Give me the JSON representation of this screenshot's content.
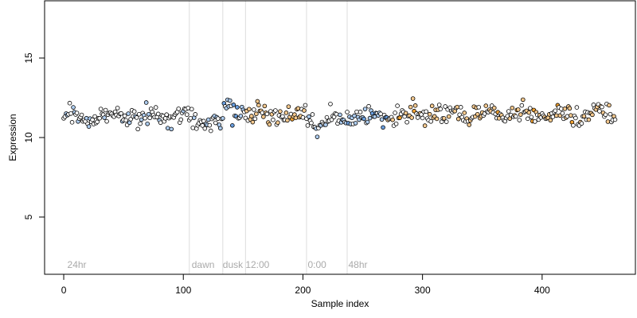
{
  "chart_data": {
    "type": "scatter",
    "title": "",
    "xlabel": "Sample index",
    "ylabel": "Expression",
    "xlim": [
      -16,
      478
    ],
    "ylim": [
      1.4,
      18.6
    ],
    "x_ticks": [
      0,
      100,
      200,
      300,
      400
    ],
    "y_ticks": [
      5,
      10,
      15
    ],
    "grid": false,
    "legend": "none",
    "n_points": 462,
    "colors": {
      "neutral": "#ffffff",
      "light_blue": "#aecdf0",
      "blue": "#6a9fe0",
      "light_orange": "#f5c98e",
      "orange": "#f0a030",
      "outline": "#000000",
      "divider": "#dddddd",
      "annotation": "#aaaaaa"
    },
    "dividers": [
      105,
      133,
      152,
      203,
      237
    ],
    "annotations": [
      {
        "x": 3,
        "label": "24hr"
      },
      {
        "x": 107,
        "label": "dawn"
      },
      {
        "x": 133,
        "label": "dusk"
      },
      {
        "x": 152,
        "label": "12:00"
      },
      {
        "x": 204,
        "label": "0:00"
      },
      {
        "x": 238,
        "label": "48hr"
      }
    ],
    "annotation_y": 2.0,
    "segments": [
      {
        "from": 0,
        "to": 104,
        "mean": 11.3,
        "color": "neutral"
      },
      {
        "from": 105,
        "to": 132,
        "mean": 11.05,
        "color": "neutral"
      },
      {
        "from": 133,
        "to": 151,
        "mean": 11.6,
        "color": "light_blue"
      },
      {
        "from": 152,
        "to": 202,
        "mean": 11.4,
        "color": "light_orange"
      },
      {
        "from": 203,
        "to": 236,
        "mean": 11.1,
        "color": "neutral"
      },
      {
        "from": 237,
        "to": 270,
        "mean": 11.3,
        "color": "light_blue"
      },
      {
        "from": 271,
        "to": 461,
        "mean": 11.45,
        "color": "light_orange"
      }
    ]
  }
}
